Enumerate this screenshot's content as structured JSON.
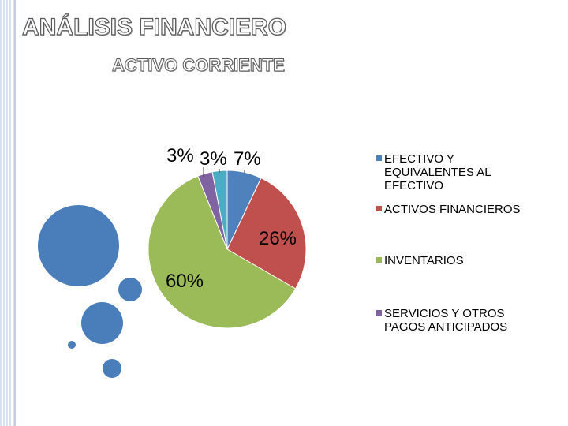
{
  "header": {
    "title": "ANÁLISIS FINANCIERO",
    "subtitle": "ACTIVO CORRIENTE"
  },
  "chart_data": {
    "type": "pie",
    "categories": [
      "EFECTIVO Y EQUIVALENTES AL EFECTIVO",
      "ACTIVOS FINANCIEROS",
      "INVENTARIOS",
      "SERVICIOS Y OTROS PAGOS ANTICIPADOS",
      ""
    ],
    "values": [
      7,
      26,
      60,
      3,
      3
    ],
    "data_labels": [
      "7%",
      "26%",
      "60%",
      "3%",
      "3%"
    ],
    "colors": [
      "#4f81bd",
      "#c0504d",
      "#9bbb59",
      "#8064a2",
      "#4bacc6"
    ],
    "legend_position": "right"
  },
  "colors": {
    "decor_circles": "#4a7ebb"
  }
}
